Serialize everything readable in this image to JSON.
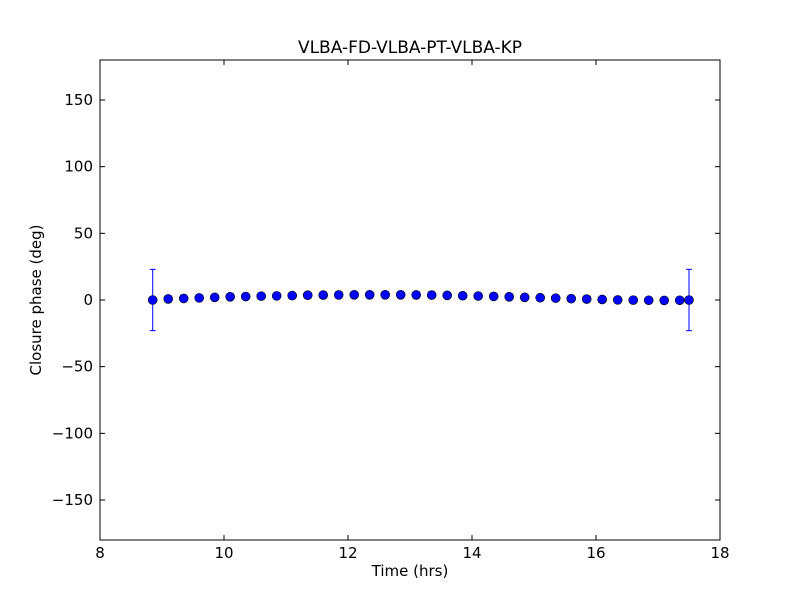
{
  "chart_data": {
    "type": "scatter",
    "title": "VLBA-FD-VLBA-PT-VLBA-KP",
    "xlabel": "Time (hrs)",
    "ylabel": "Closure phase (deg)",
    "xlim": [
      8,
      18
    ],
    "ylim": [
      -180,
      180
    ],
    "xticks": [
      8,
      10,
      12,
      14,
      16,
      18
    ],
    "xtick_labels": [
      "8",
      "10",
      "12",
      "14",
      "16",
      "18"
    ],
    "yticks": [
      -150,
      -100,
      -50,
      0,
      50,
      100,
      150
    ],
    "ytick_labels": [
      "−150",
      "−100",
      "−50",
      "0",
      "50",
      "100",
      "150"
    ],
    "grid": false,
    "marker_color": "#0000ff",
    "series": [
      {
        "x": [
          8.85,
          9.1,
          9.35,
          9.6,
          9.85,
          10.1,
          10.35,
          10.6,
          10.85,
          11.1,
          11.35,
          11.6,
          11.85,
          12.1,
          12.35,
          12.6,
          12.85,
          13.1,
          13.35,
          13.6,
          13.85,
          14.1,
          14.35,
          14.6,
          14.85,
          15.1,
          15.35,
          15.6,
          15.85,
          16.1,
          16.35,
          16.6,
          16.85,
          17.1,
          17.35,
          17.5
        ],
        "y": [
          0,
          0.8,
          1.2,
          1.6,
          2.0,
          2.4,
          2.6,
          2.9,
          3.1,
          3.3,
          3.6,
          3.7,
          3.8,
          3.9,
          3.9,
          3.9,
          3.9,
          3.8,
          3.7,
          3.5,
          3.2,
          3.0,
          2.7,
          2.4,
          2.0,
          1.7,
          1.4,
          1.0,
          0.7,
          0.4,
          0.1,
          -0.1,
          -0.2,
          -0.3,
          -0.2,
          0
        ],
        "yerr": [
          23,
          null,
          null,
          null,
          null,
          null,
          null,
          null,
          null,
          null,
          null,
          null,
          null,
          null,
          null,
          null,
          null,
          null,
          null,
          null,
          null,
          null,
          null,
          null,
          null,
          null,
          null,
          null,
          null,
          null,
          null,
          null,
          null,
          null,
          null,
          23
        ]
      }
    ]
  }
}
